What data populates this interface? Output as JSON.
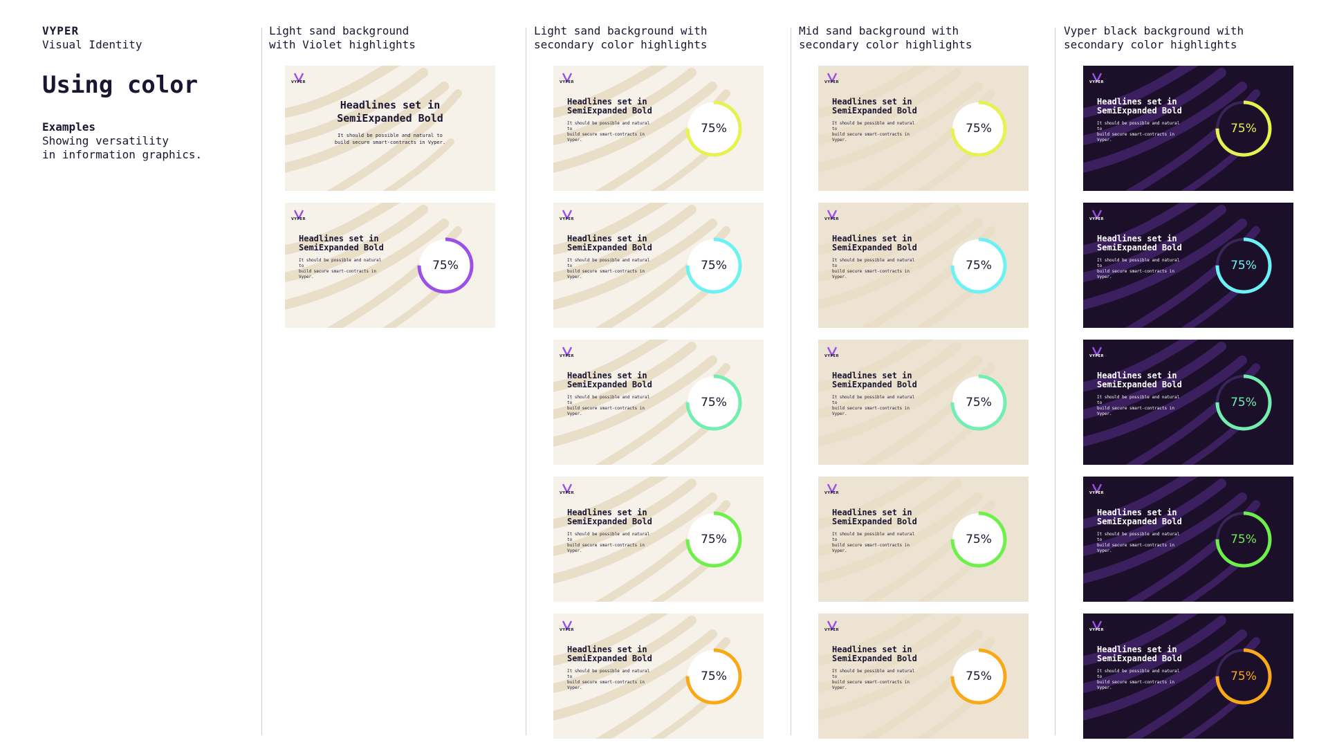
{
  "header": {
    "brand": "VYPER",
    "subtitle": "Visual Identity",
    "title": "Using color",
    "examples_title": "Examples",
    "examples_desc": [
      "Showing versatility",
      "in information graphics."
    ]
  },
  "columns": [
    {
      "heading": [
        "Light sand background",
        "with Violet highlights"
      ]
    },
    {
      "heading": [
        "Light sand background with",
        "secondary color highlights"
      ]
    },
    {
      "heading": [
        "Mid sand background with",
        "secondary color highlights"
      ]
    },
    {
      "heading": [
        "Vyper black background with",
        "secondary color highlights"
      ]
    }
  ],
  "card": {
    "logo_text": "VYPER",
    "headline_line1": "Headlines set in",
    "headline_line2": "SemiExpanded Bold",
    "body_line1": "It should be possible and natural to",
    "body_line2": "build secure smart-contracts in Vyper.",
    "percent_label": "75%",
    "percent_value": 75
  },
  "colors": {
    "violet": "#9b50e8",
    "light_sand": "#f6f2ea",
    "mid_sand": "#ece3d3",
    "vyper_black": "#1b0f2a",
    "highlights": [
      "#e5f24f",
      "#6cf2f4",
      "#72eeb0",
      "#6ef04b",
      "#f9a918"
    ]
  },
  "icons": [
    "vyper-logo-icon",
    "progress-ring-icon"
  ]
}
